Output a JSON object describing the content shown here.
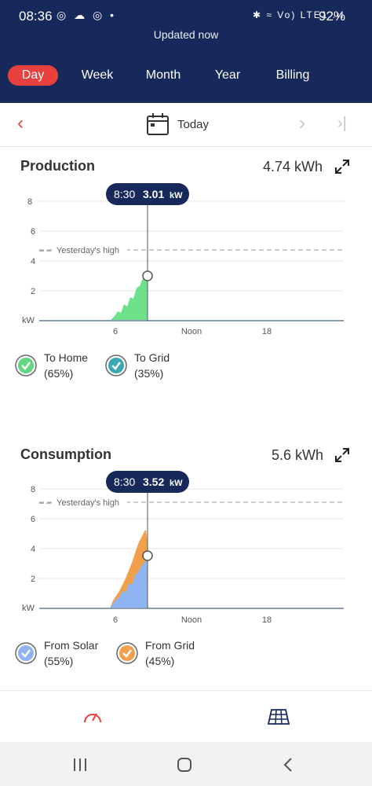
{
  "status_bar": {
    "time": "08:36",
    "left_icons": "◎ ☁ ◎ •",
    "right_icons": "✱ ≈ Vo) LTE1 .ıl",
    "battery": "92%"
  },
  "header": {
    "updated": "Updated now",
    "tabs": [
      {
        "label": "Day",
        "active": true
      },
      {
        "label": "Week",
        "active": false
      },
      {
        "label": "Month",
        "active": false
      },
      {
        "label": "Year",
        "active": false
      },
      {
        "label": "Billing",
        "active": false
      }
    ]
  },
  "date_bar": {
    "label": "Today"
  },
  "production": {
    "title": "Production",
    "total": "4.74 kWh",
    "tooltip": {
      "time": "8:30",
      "value": "3.01",
      "unit": "kW"
    },
    "yesterday_label": "Yesterday's high",
    "legend": [
      {
        "label": "To Home",
        "pct": "(65%)",
        "color": "#5fd67f"
      },
      {
        "label": "To Grid",
        "pct": "(35%)",
        "color": "#3aa7b4"
      }
    ]
  },
  "consumption": {
    "title": "Consumption",
    "total": "5.6 kWh",
    "tooltip": {
      "time": "8:30",
      "value": "3.52",
      "unit": "kW"
    },
    "yesterday_label": "Yesterday's high",
    "legend": [
      {
        "label": "From Solar",
        "pct": "(55%)",
        "color": "#8fb4f2"
      },
      {
        "label": "From Grid",
        "pct": "(45%)",
        "color": "#f0a04b"
      }
    ]
  },
  "axis": {
    "y_ticks": [
      "8",
      "6",
      "4",
      "2",
      "kW"
    ],
    "x_ticks": [
      "6",
      "Noon",
      "18"
    ]
  },
  "colors": {
    "navy": "#17295a",
    "accent": "#e8413d",
    "production_fill": "#6ee28a",
    "solar_fill": "#8fb4f2",
    "grid_fill": "#f0a04b"
  },
  "bottom_nav": {
    "icons": [
      "gauge-icon",
      "solar-panel-icon"
    ]
  }
}
